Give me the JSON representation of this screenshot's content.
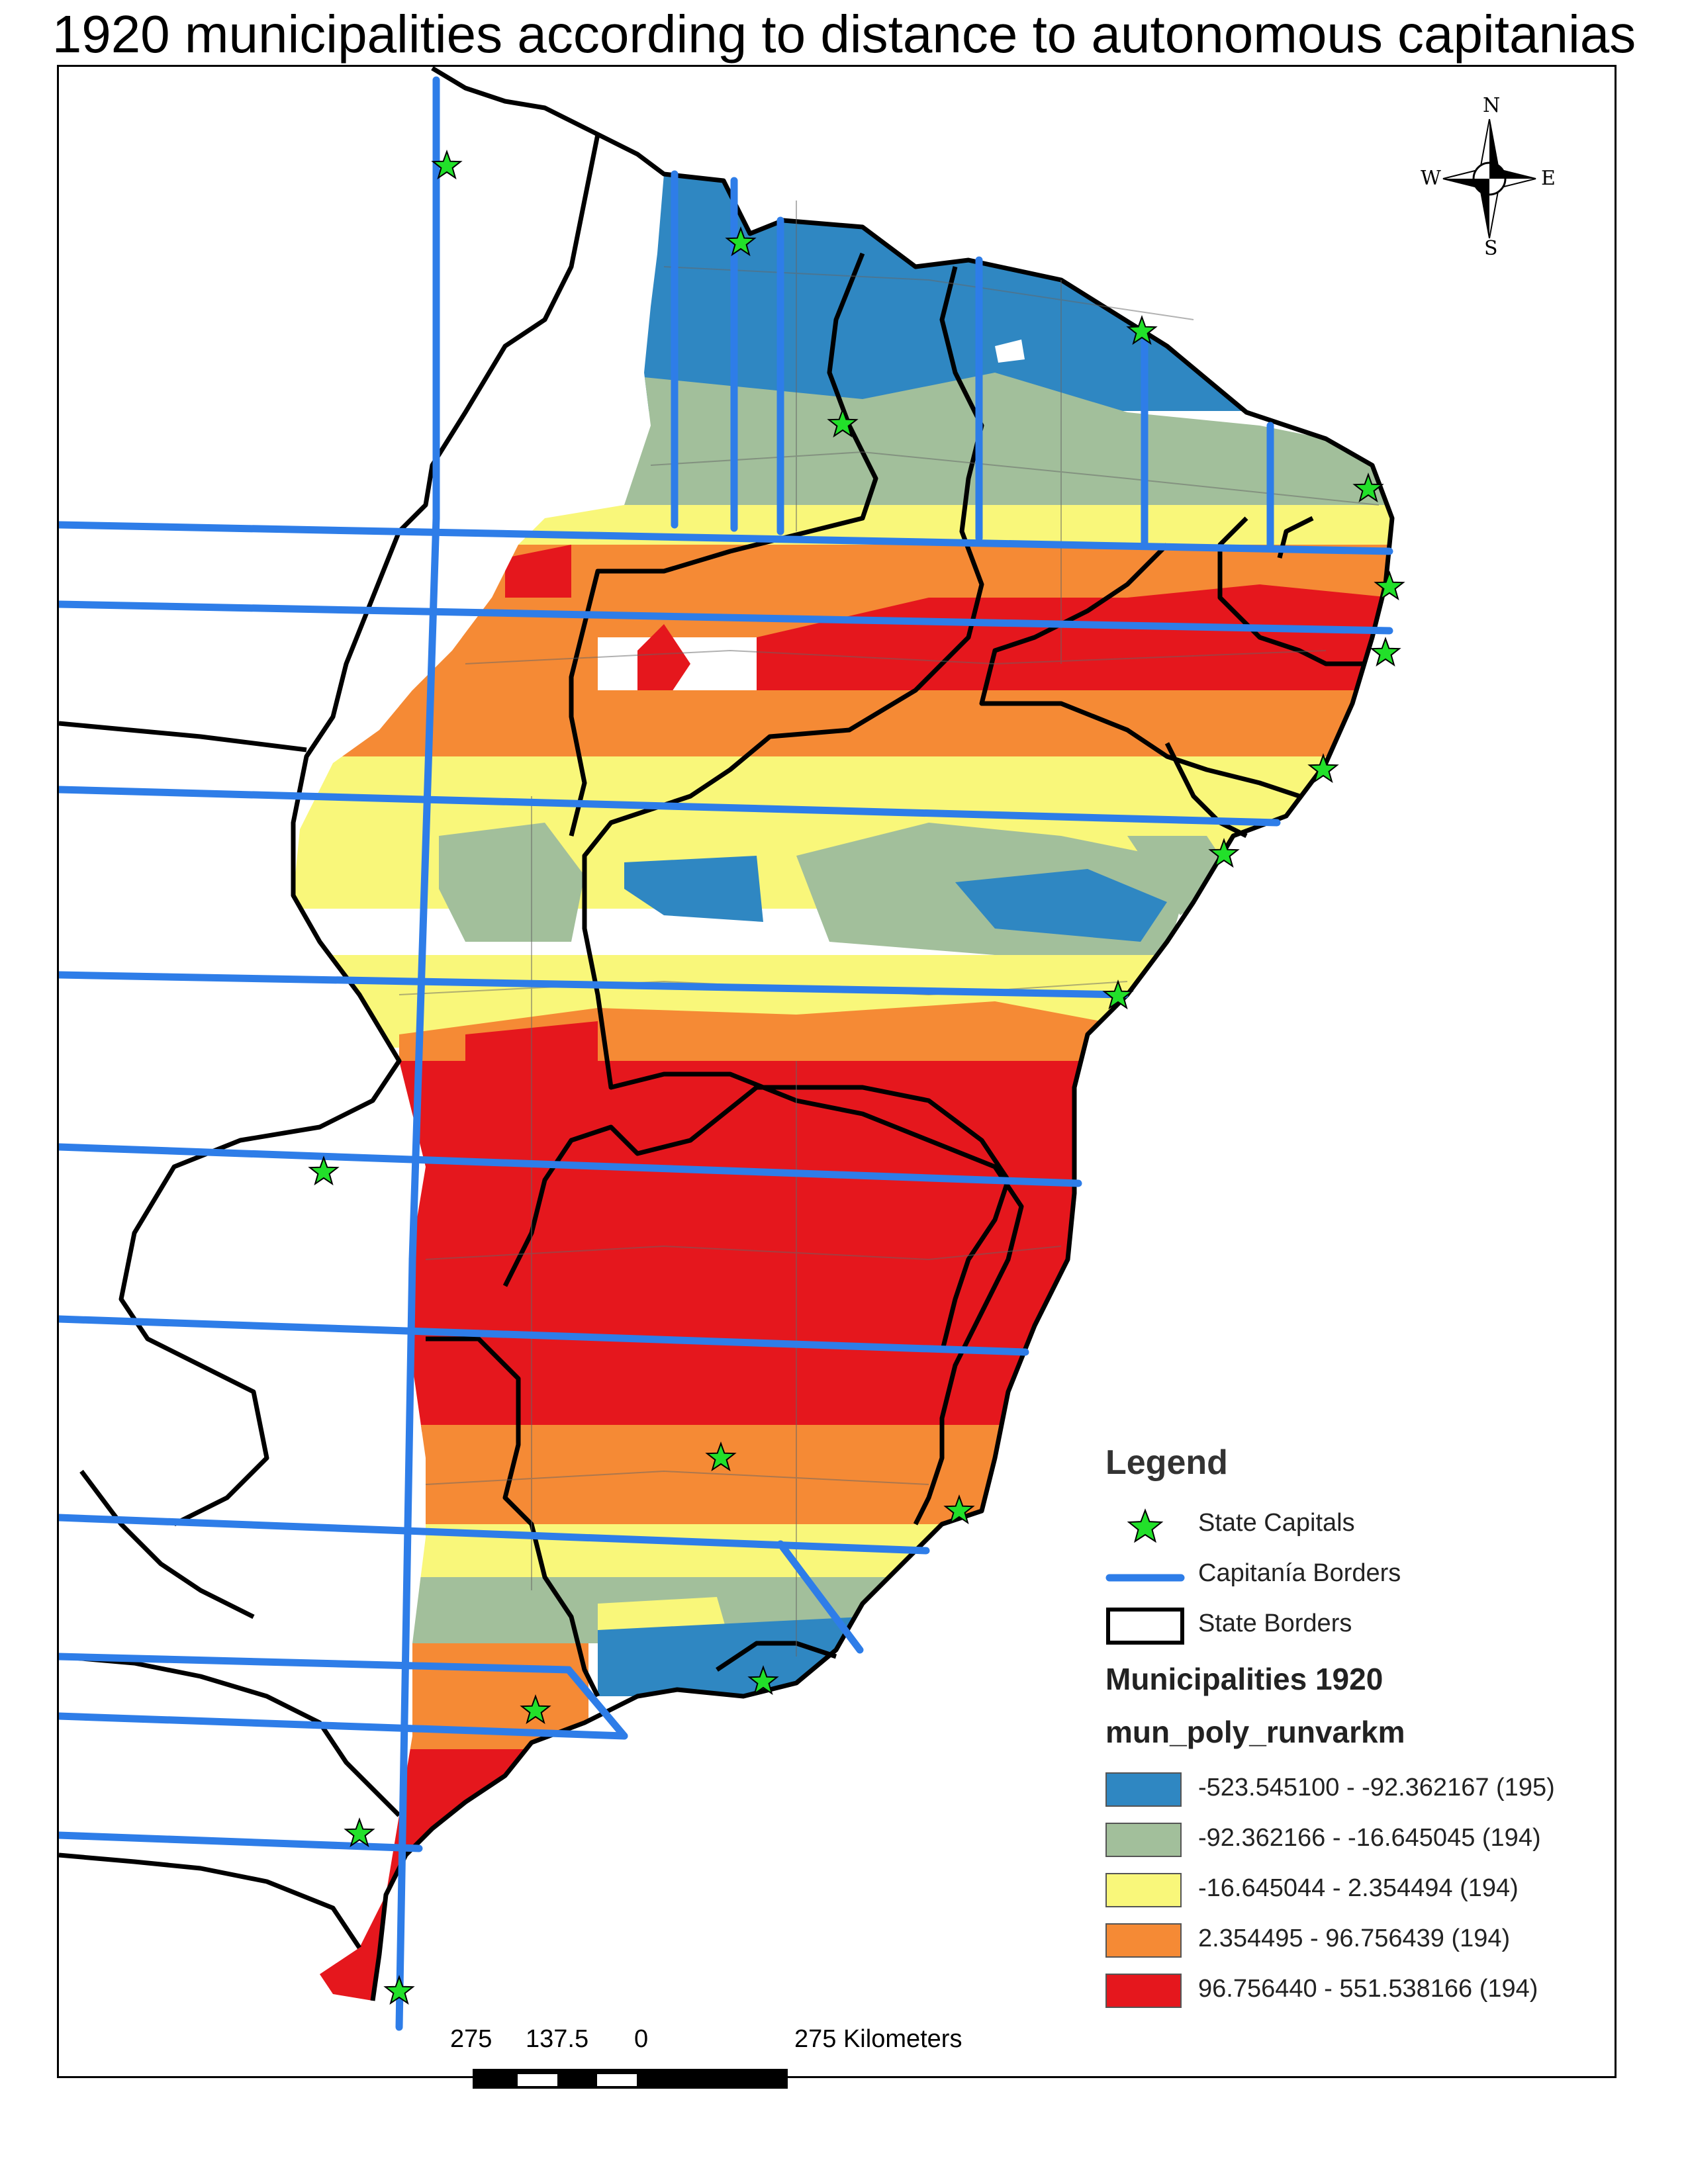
{
  "title": "1920 municipalities according to distance to autonomous capitanias",
  "compass": {
    "n": "N",
    "s": "S",
    "e": "E",
    "w": "W"
  },
  "legend": {
    "title": "Legend",
    "items": [
      {
        "label": "State Capitals",
        "symbol": "star",
        "color": "#22e02a"
      },
      {
        "label": "Capitanía Borders",
        "symbol": "line",
        "color": "#2e7de8"
      },
      {
        "label": "State Borders",
        "symbol": "box",
        "color": "#000000"
      }
    ],
    "layer_title": "Municipalities 1920",
    "field_name": "mun_poly_runvarkm",
    "classes": [
      {
        "label": "-523.545100 - -92.362167 (195)",
        "color": "#2f87c2",
        "min": -523.5451,
        "max": -92.362167,
        "count": 195
      },
      {
        "label": "-92.362166 - -16.645045 (194)",
        "color": "#a2bf9b",
        "min": -92.362166,
        "max": -16.645045,
        "count": 194
      },
      {
        "label": "-16.645044 - 2.354494 (194)",
        "color": "#f9f77a",
        "min": -16.645044,
        "max": 2.354494,
        "count": 194
      },
      {
        "label": "2.354495 - 96.756439 (194)",
        "color": "#f58a35",
        "min": 2.354495,
        "max": 96.756439,
        "count": 194
      },
      {
        "label": "96.756440 - 551.538166 (194)",
        "color": "#e5171d",
        "min": 96.75644,
        "max": 551.538166,
        "count": 194
      }
    ]
  },
  "scale_bar": {
    "labels": [
      "275",
      "137.5",
      "0",
      "275 Kilometers"
    ]
  }
}
